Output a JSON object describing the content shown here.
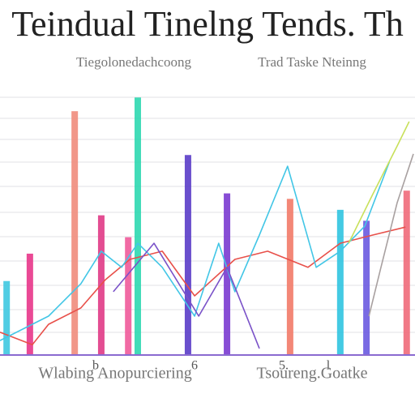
{
  "chart_data": {
    "type": "bar",
    "title": "Teindual Tinelng Tends. Th",
    "subtitles": [
      "Tiegolonedachcoong",
      "Trad Taske Nteinng"
    ],
    "x_labels": [
      "b",
      "6",
      "5.",
      "l"
    ],
    "axis_labels": [
      "Wlabing Anopurciering",
      "Tsoureng.Goatke"
    ],
    "xlim": [
      0,
      100
    ],
    "ylim": [
      0,
      100
    ],
    "x": [
      1.6,
      7.2,
      18,
      24.4,
      30.9,
      33.2,
      45.3,
      54.7,
      69.9,
      82,
      88.3,
      98
    ],
    "values": [
      27,
      37,
      89,
      51,
      43,
      94,
      73,
      59,
      57,
      53,
      49,
      60
    ],
    "colors": [
      "#3ec8e0",
      "#e8358a",
      "#f08c7c",
      "#e03a86",
      "#f05a9a",
      "#2ed8b0",
      "#5a3cc8",
      "#7a3ad0",
      "#f27a68",
      "#30c4e0",
      "#6a5ae0",
      "#f06a7a"
    ],
    "lines": [
      {
        "color": "#e8504a",
        "x": [
          0,
          7.8,
          11.7,
          19.5,
          25.4,
          31.3,
          39.1,
          46.9,
          56.6,
          64.5,
          74.2,
          82,
          89.8,
          97.7
        ],
        "values": [
          8.3,
          3.8,
          11.2,
          17.2,
          27.5,
          34.9,
          37.9,
          21.6,
          34.9,
          37.9,
          32,
          40.8,
          43.8,
          46.7
        ]
      },
      {
        "color": "#42c6e6",
        "x": [
          0,
          11.7,
          19.5,
          24.4,
          29.3,
          33.2,
          39.1,
          46.9,
          52.7,
          56.6,
          62.5,
          69.3,
          76.2,
          82,
          87.9,
          93.8
        ],
        "values": [
          5.3,
          14.2,
          26,
          37.9,
          32,
          40.8,
          32,
          14.2,
          40.8,
          23.1,
          43.8,
          68.9,
          32,
          37.9,
          47,
          70.4
        ]
      },
      {
        "color": "#7a52c8",
        "x": [
          27.3,
          37.1,
          47.9,
          54.7,
          62.5
        ],
        "values": [
          23.1,
          40.8,
          14.2,
          32,
          2.4
        ]
      },
      {
        "color": "#c8e05a",
        "x": [
          84,
          89.8,
          95.7,
          98.6
        ],
        "values": [
          40.8,
          58.6,
          76.3,
          85.2
        ]
      },
      {
        "color": "#a8a0a0",
        "x": [
          88.9,
          91.8,
          95.7,
          99.6
        ],
        "values": [
          14.2,
          32,
          55.6,
          73.4
        ]
      }
    ]
  }
}
